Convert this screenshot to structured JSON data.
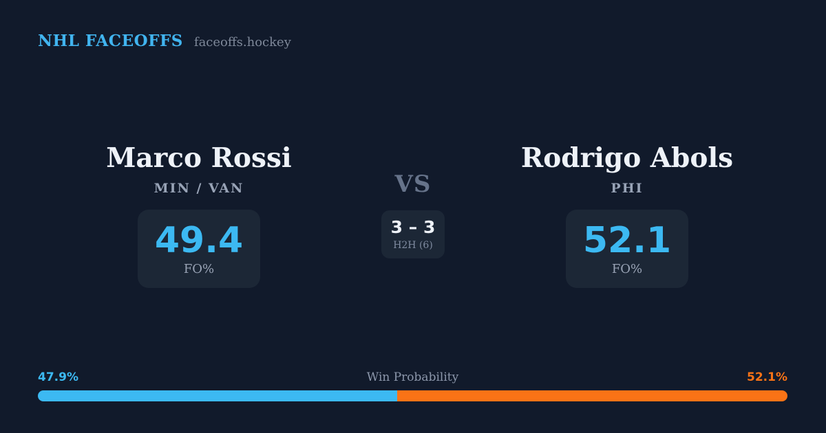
{
  "header": {
    "brand": "NHL FACEOFFS",
    "site": "faceoffs.hockey"
  },
  "players": {
    "left": {
      "name": "Marco Rossi",
      "teams": "MIN / VAN",
      "fo_pct": "49.4",
      "stat_label": "FO%"
    },
    "right": {
      "name": "Rodrigo Abols",
      "teams": "PHI",
      "fo_pct": "52.1",
      "stat_label": "FO%"
    }
  },
  "center": {
    "vs_label": "VS",
    "h2h_score": "3 – 3",
    "h2h_label": "H2H (6)"
  },
  "win_probability": {
    "title": "Win Probability",
    "left_label": "47.9%",
    "right_label": "52.1%",
    "left_value": 47.9,
    "right_value": 52.1
  },
  "colors": {
    "background": "#111a2b",
    "card": "#1c2736",
    "accent_blue": "#3cb9f2",
    "accent_orange": "#f97316"
  },
  "chart_data": {
    "type": "bar",
    "title": "Win Probability",
    "categories": [
      "Marco Rossi (MIN / VAN)",
      "Rodrigo Abols (PHI)"
    ],
    "series": [
      {
        "name": "Win Probability %",
        "values": [
          47.9,
          52.1
        ]
      },
      {
        "name": "Faceoff %",
        "values": [
          49.4,
          52.1
        ]
      },
      {
        "name": "H2H wins (of 6)",
        "values": [
          3,
          3
        ]
      }
    ],
    "annotations": [
      "47.9%",
      "52.1%"
    ],
    "colors": [
      "#3cb9f2",
      "#f97316"
    ],
    "xlim": [
      0,
      100
    ],
    "legend_position": "none",
    "grid": false
  }
}
